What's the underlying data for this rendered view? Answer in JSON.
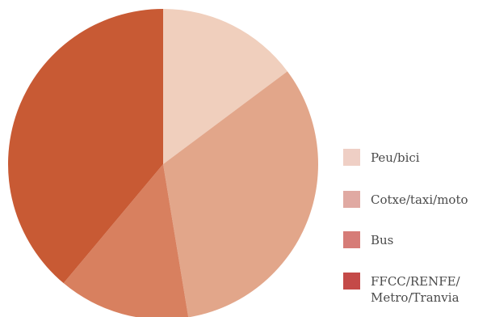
{
  "chart_data": {
    "type": "pie",
    "title": "",
    "start_angle_deg": 0,
    "direction": "clockwise",
    "slices": [
      {
        "label": "Peu/bici",
        "label_lines": [
          "Peu/bici"
        ],
        "value": 14.8,
        "color": "#f0cfbd"
      },
      {
        "label": "Cotxe/taxi/moto",
        "label_lines": [
          "Cotxe/taxi/moto"
        ],
        "value": 32.6,
        "color": "#e2a68a"
      },
      {
        "label": "Bus",
        "label_lines": [
          "Bus"
        ],
        "value": 13.7,
        "color": "#d8805f"
      },
      {
        "label": "FFCC/RENFE/ Metro/Tranvia",
        "label_lines": [
          "FFCC/RENFE/",
          "Metro/Tranvia"
        ],
        "value": 38.9,
        "color": "#c85a34"
      }
    ],
    "legend": {
      "position": "right",
      "swatch_colors": [
        "#efcfc5",
        "#e0a9a2",
        "#d67c77",
        "#c44a48"
      ]
    }
  }
}
